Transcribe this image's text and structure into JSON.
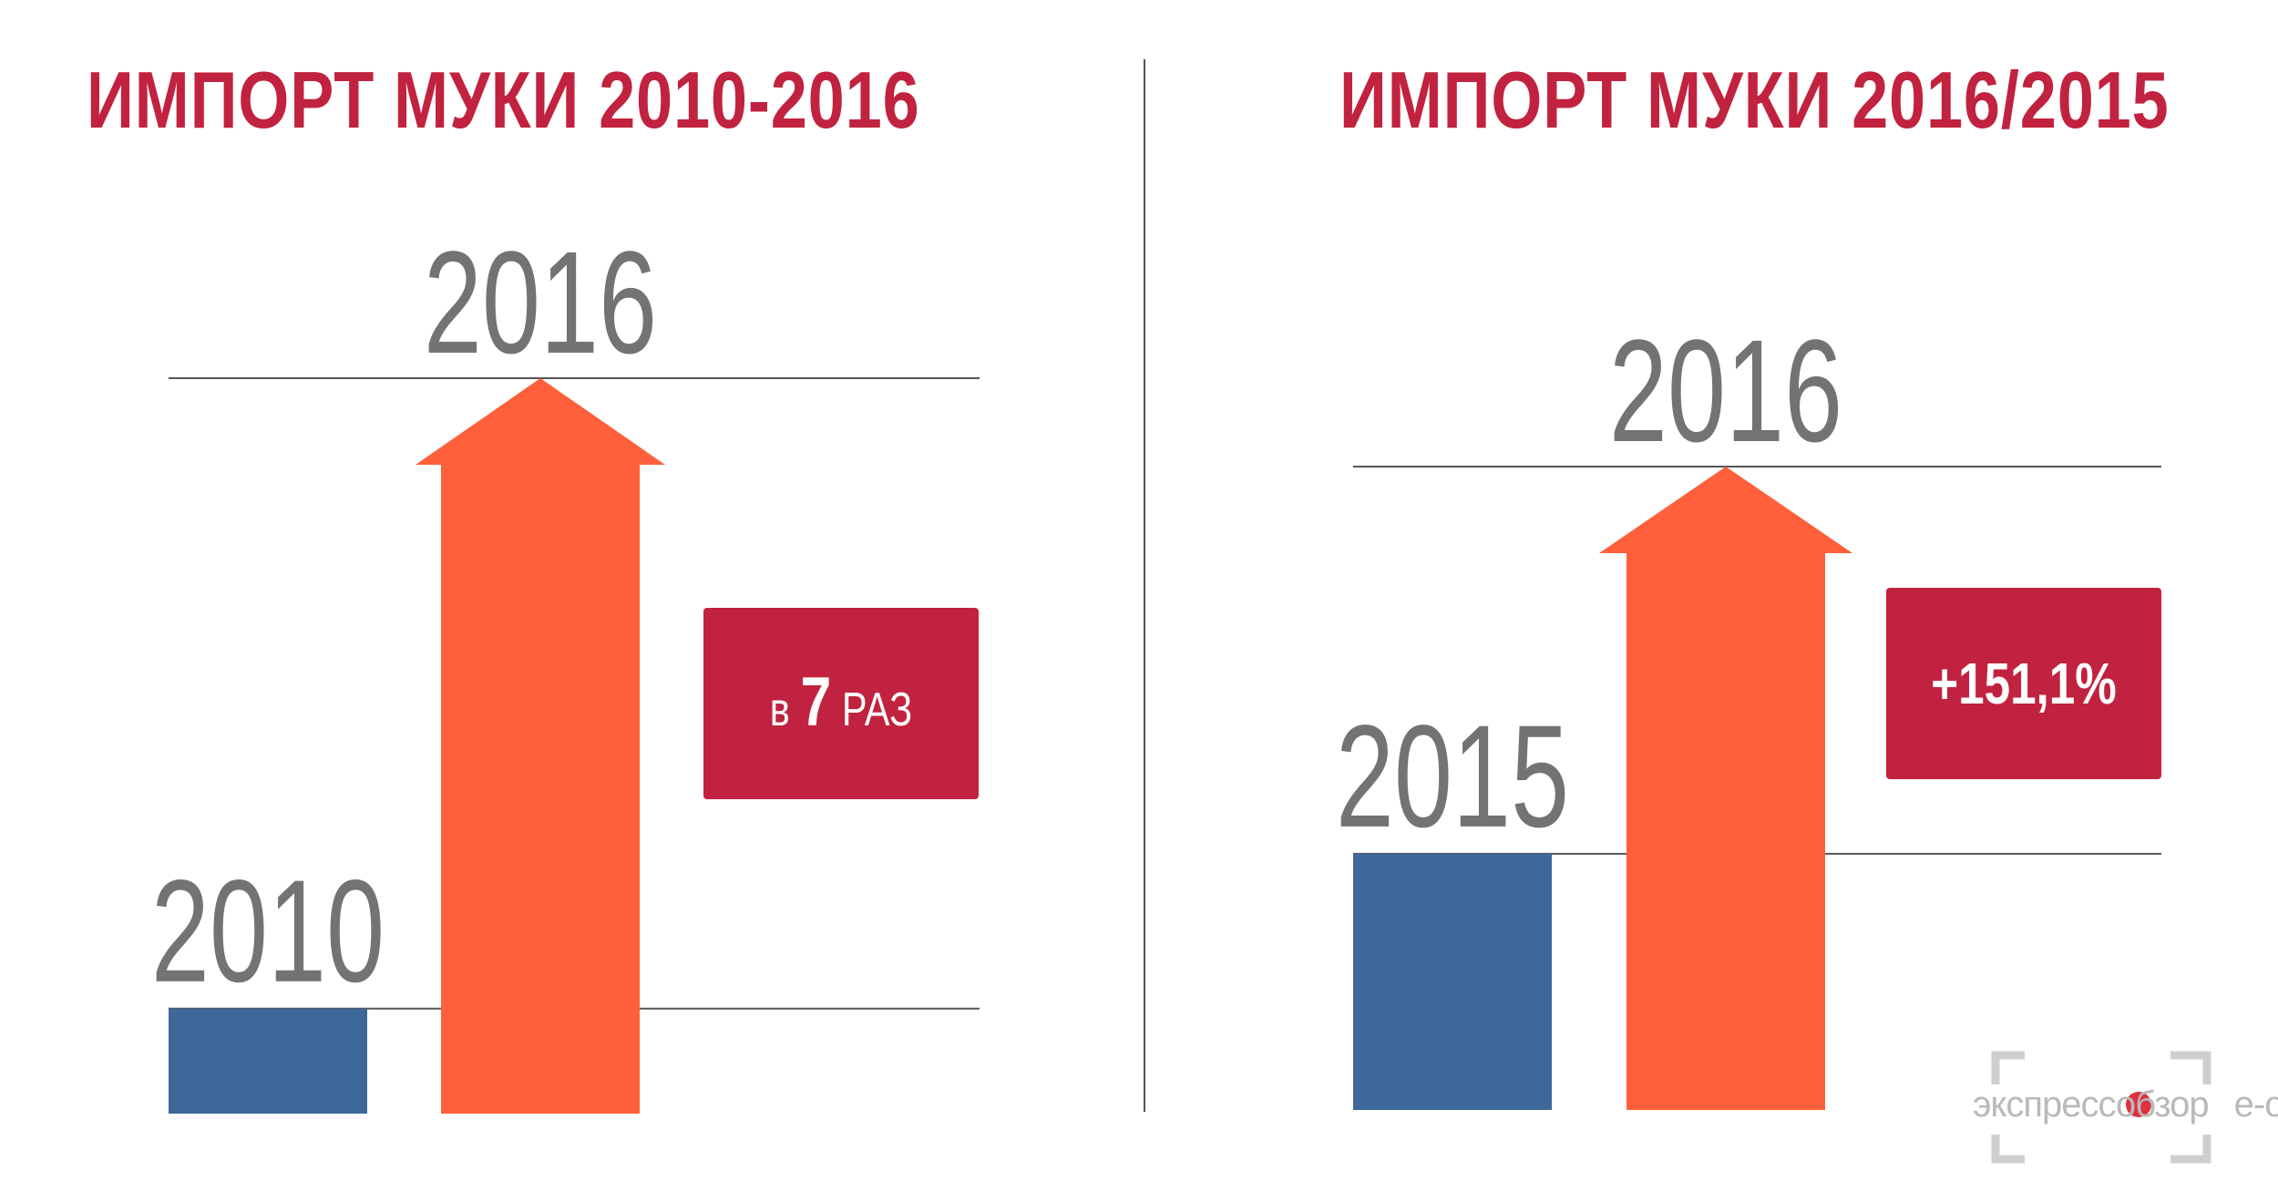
{
  "colors": {
    "title": "#c1223f",
    "bar_base": "#3d6899",
    "arrow": "#ff5f3b",
    "badge": "#c1223f",
    "year_text": "#737373",
    "line": "#555555"
  },
  "chart_data": [
    {
      "type": "bar",
      "title": "ИМПОРТ МУКИ 2010-2016",
      "categories": [
        "2010",
        "2016"
      ],
      "values": [
        1,
        7
      ],
      "annotation": {
        "prefix": "в",
        "number": "7",
        "suffix": "раз"
      }
    },
    {
      "type": "bar",
      "title": "ИМПОРТ МУКИ 2016/2015",
      "categories": [
        "2015",
        "2016"
      ],
      "values": [
        1,
        2.511
      ],
      "annotation": {
        "text": "+151,1%"
      }
    }
  ],
  "watermark": {
    "text": "экспрессобзор",
    "suffix": "е-о.ru"
  }
}
